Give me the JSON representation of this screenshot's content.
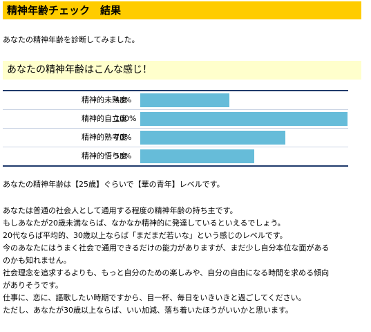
{
  "header": {
    "title": "精神年齢チェック　結果"
  },
  "intro": {
    "text": "あなたの精神年齢を診断してみました。"
  },
  "section": {
    "title": "あなたの精神年齢はこんな感じ！"
  },
  "chart_data": {
    "type": "bar",
    "orientation": "horizontal",
    "categories": [
      "精神的未熟度",
      "精神的自立度",
      "精神的熟考度",
      "精神的悟り度"
    ],
    "values": [
      43,
      100,
      70,
      55
    ],
    "value_labels": [
      "43%",
      "100%",
      "70%",
      "55%"
    ],
    "xlim": [
      0,
      100
    ],
    "bar_color": "#66bcd9",
    "rule_color": "#1f3a6b"
  },
  "result": {
    "text": "あなたの精神年齢は【25歳】ぐらいで【華の青年】レベルです。"
  },
  "description": {
    "lines": [
      "あなたは普通の社会人として通用する程度の精神年齢の持ち主です。",
      "もしあなたが20歳未満ならば、なかなか精神的に発達しているといえるでしょう。",
      "20代ならば平均的、30歳以上ならば「まだまだ若いな」という感じのレベルです。",
      "今のあなたにはうまく社会で通用できるだけの能力がありますが、まだ少し自分本位な面がある",
      "のかも知れません。",
      "社会理念を追求するよりも、もっと自分のための楽しみや、自分の自由になる時間を求める傾向",
      "がありそうです。",
      "仕事に、恋に、謳歌したい時期ですから、目一杯、毎日をいきいきと過ごしてください。",
      "ただし、あなたが30歳以上ならば、いい加減、落ち着いたほうがいいかと思います。"
    ]
  }
}
